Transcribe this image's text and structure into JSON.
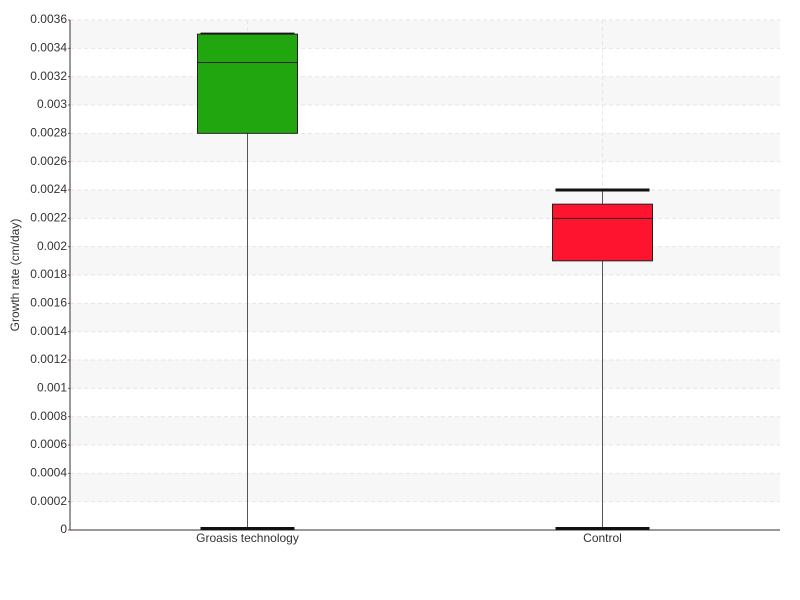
{
  "chart_data": {
    "type": "box",
    "y_label": "Growth rate (cm/day)",
    "categories": [
      "Groasis technology",
      "Control"
    ],
    "boxes": [
      {
        "min": 0,
        "q1": 0.0028,
        "median": 0.0033,
        "q3": 0.0035,
        "max": 0.0035,
        "color": "#22a60f"
      },
      {
        "min": 0,
        "q1": 0.0019,
        "median": 0.0022,
        "q3": 0.0023,
        "max": 0.0024,
        "color": "#ff1430"
      }
    ],
    "ylim": [
      0,
      0.0036
    ],
    "yticks": [
      0,
      0.0002,
      0.0004,
      0.0006,
      0.0008,
      0.001,
      0.0012,
      0.0014,
      0.0016,
      0.0018,
      0.002,
      0.0022,
      0.0024,
      0.0026,
      0.0028,
      0.003,
      0.0032,
      0.0034,
      0.0036
    ],
    "grid": true
  }
}
